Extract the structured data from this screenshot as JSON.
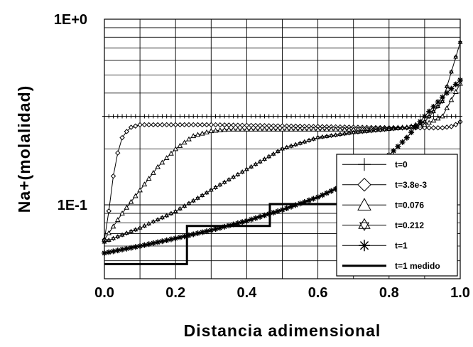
{
  "chart_data": {
    "type": "line",
    "xlabel": "Distancia adimensional",
    "ylabel": "Na+(molalidad)",
    "xlim": [
      0.0,
      1.0
    ],
    "ylim": [
      0.04,
      1.0
    ],
    "yscale": "log",
    "grid": true,
    "legend_position": "bottom-right",
    "x_ticks": [
      "0.0",
      "0.2",
      "0.4",
      "0.6",
      "0.8",
      "1.0"
    ],
    "y_ticks": [
      "1E-1",
      "1E+0"
    ],
    "series": [
      {
        "name": "t=0",
        "marker": "plus",
        "x": [
          0.0,
          0.1,
          0.2,
          0.3,
          0.4,
          0.5,
          0.6,
          0.7,
          0.8,
          0.9,
          1.0
        ],
        "y": [
          0.3,
          0.3,
          0.3,
          0.3,
          0.3,
          0.3,
          0.3,
          0.3,
          0.3,
          0.3,
          0.3
        ]
      },
      {
        "name": "t=3.8e-3",
        "marker": "diamond",
        "x": [
          0.0,
          0.01,
          0.02,
          0.03,
          0.05,
          0.07,
          0.1,
          0.15,
          0.2,
          0.3,
          0.4,
          0.5,
          0.6,
          0.7,
          0.8,
          0.9,
          0.95,
          0.98,
          1.0
        ],
        "y": [
          0.065,
          0.085,
          0.12,
          0.17,
          0.23,
          0.26,
          0.27,
          0.27,
          0.27,
          0.27,
          0.268,
          0.266,
          0.264,
          0.262,
          0.26,
          0.26,
          0.26,
          0.265,
          0.28
        ]
      },
      {
        "name": "t=0.076",
        "marker": "triangle",
        "x": [
          0.0,
          0.05,
          0.1,
          0.15,
          0.2,
          0.25,
          0.3,
          0.35,
          0.4,
          0.5,
          0.6,
          0.7,
          0.8,
          0.85,
          0.9,
          0.95,
          1.0
        ],
        "y": [
          0.065,
          0.09,
          0.12,
          0.16,
          0.2,
          0.235,
          0.25,
          0.255,
          0.255,
          0.255,
          0.255,
          0.255,
          0.26,
          0.262,
          0.27,
          0.3,
          0.45
        ]
      },
      {
        "name": "t=0.212",
        "marker": "star6",
        "x": [
          0.0,
          0.1,
          0.2,
          0.3,
          0.4,
          0.5,
          0.6,
          0.7,
          0.8,
          0.85,
          0.9,
          0.95,
          1.0
        ],
        "y": [
          0.063,
          0.075,
          0.092,
          0.12,
          0.155,
          0.2,
          0.23,
          0.245,
          0.255,
          0.26,
          0.28,
          0.36,
          0.75
        ]
      },
      {
        "name": "t=1",
        "marker": "asterisk",
        "x": [
          0.0,
          0.1,
          0.2,
          0.3,
          0.4,
          0.5,
          0.6,
          0.7,
          0.75,
          0.8,
          0.85,
          0.9,
          0.95,
          1.0
        ],
        "y": [
          0.055,
          0.06,
          0.066,
          0.073,
          0.082,
          0.094,
          0.11,
          0.135,
          0.155,
          0.185,
          0.23,
          0.3,
          0.38,
          0.47
        ]
      },
      {
        "name": "t=1 medido",
        "marker": "none",
        "x": [
          0.0,
          0.232,
          0.232,
          0.465,
          0.465,
          0.7
        ],
        "y": [
          0.048,
          0.048,
          0.077,
          0.077,
          0.101,
          0.101
        ],
        "step": true
      }
    ]
  }
}
